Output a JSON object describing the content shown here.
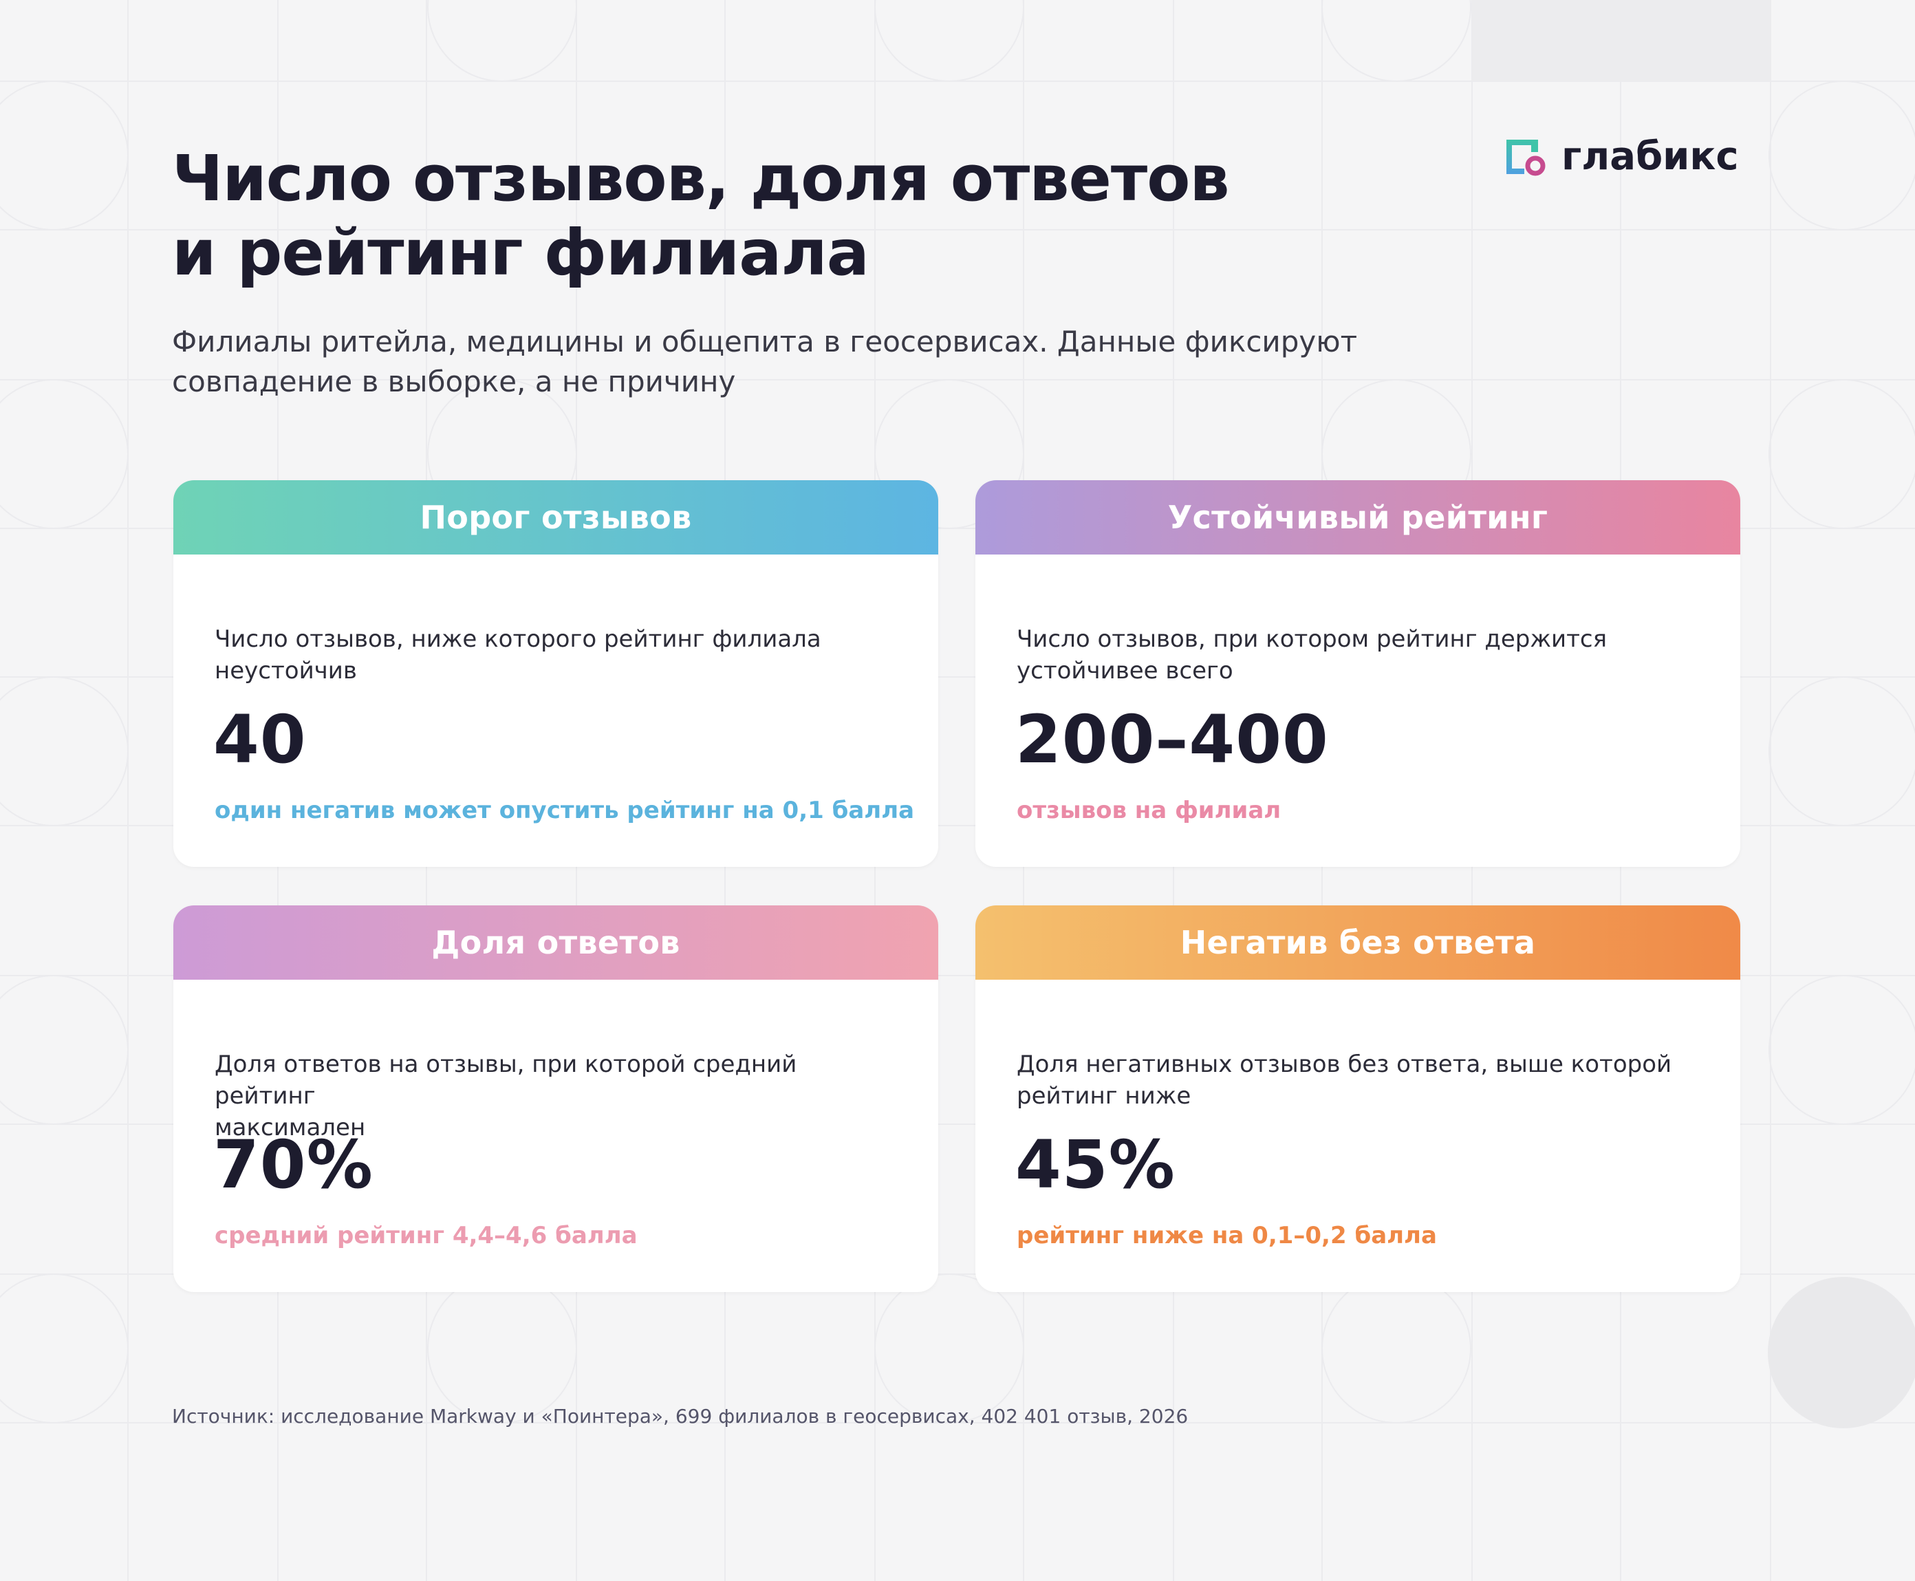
{
  "header": {
    "title_line1": "Число отзывов, доля ответов",
    "title_line2": "и рейтинг филиала",
    "subtitle_line1": "Филиалы ритейла, медицины и общепита в геосервисах. Данные фиксируют",
    "subtitle_line2": "совпадение в выборке, а не причину"
  },
  "logo": {
    "text": "глабикс",
    "mark_icon": "glabiks-logo-icon"
  },
  "cards": [
    {
      "title": "Порог отзывов",
      "desc_line1": "Число отзывов, ниже которого рейтинг филиала",
      "desc_line2": "неустойчив",
      "value": "40",
      "note": "один негатив может опустить рейтинг на 0,1 балла",
      "accent": "#5bb3dd"
    },
    {
      "title": "Устойчивый рейтинг",
      "desc_line1": "Число отзывов, при котором рейтинг держится",
      "desc_line2": "устойчивее всего",
      "value": "200–400",
      "note": "отзывов на филиал",
      "accent": "#ea8aa6"
    },
    {
      "title": "Доля ответов",
      "desc_line1": "Доля ответов на отзывы, при которой средний рейтинг",
      "desc_line2": "максимален",
      "value": "70%",
      "note": "средний рейтинг 4,4–4,6 балла",
      "accent": "#ec9cb0"
    },
    {
      "title": "Негатив без ответа",
      "desc_line1": "Доля негативных отзывов без ответа, выше которой",
      "desc_line2": "рейтинг ниже",
      "value": "45%",
      "note": "рейтинг ниже на 0,1–0,2 балла",
      "accent": "#ef8845"
    }
  ],
  "footer": {
    "source": "Источник: исследование Markway и «Поинтера», 699 филиалов в геосервисах, 402 401 отзыв, 2026"
  }
}
